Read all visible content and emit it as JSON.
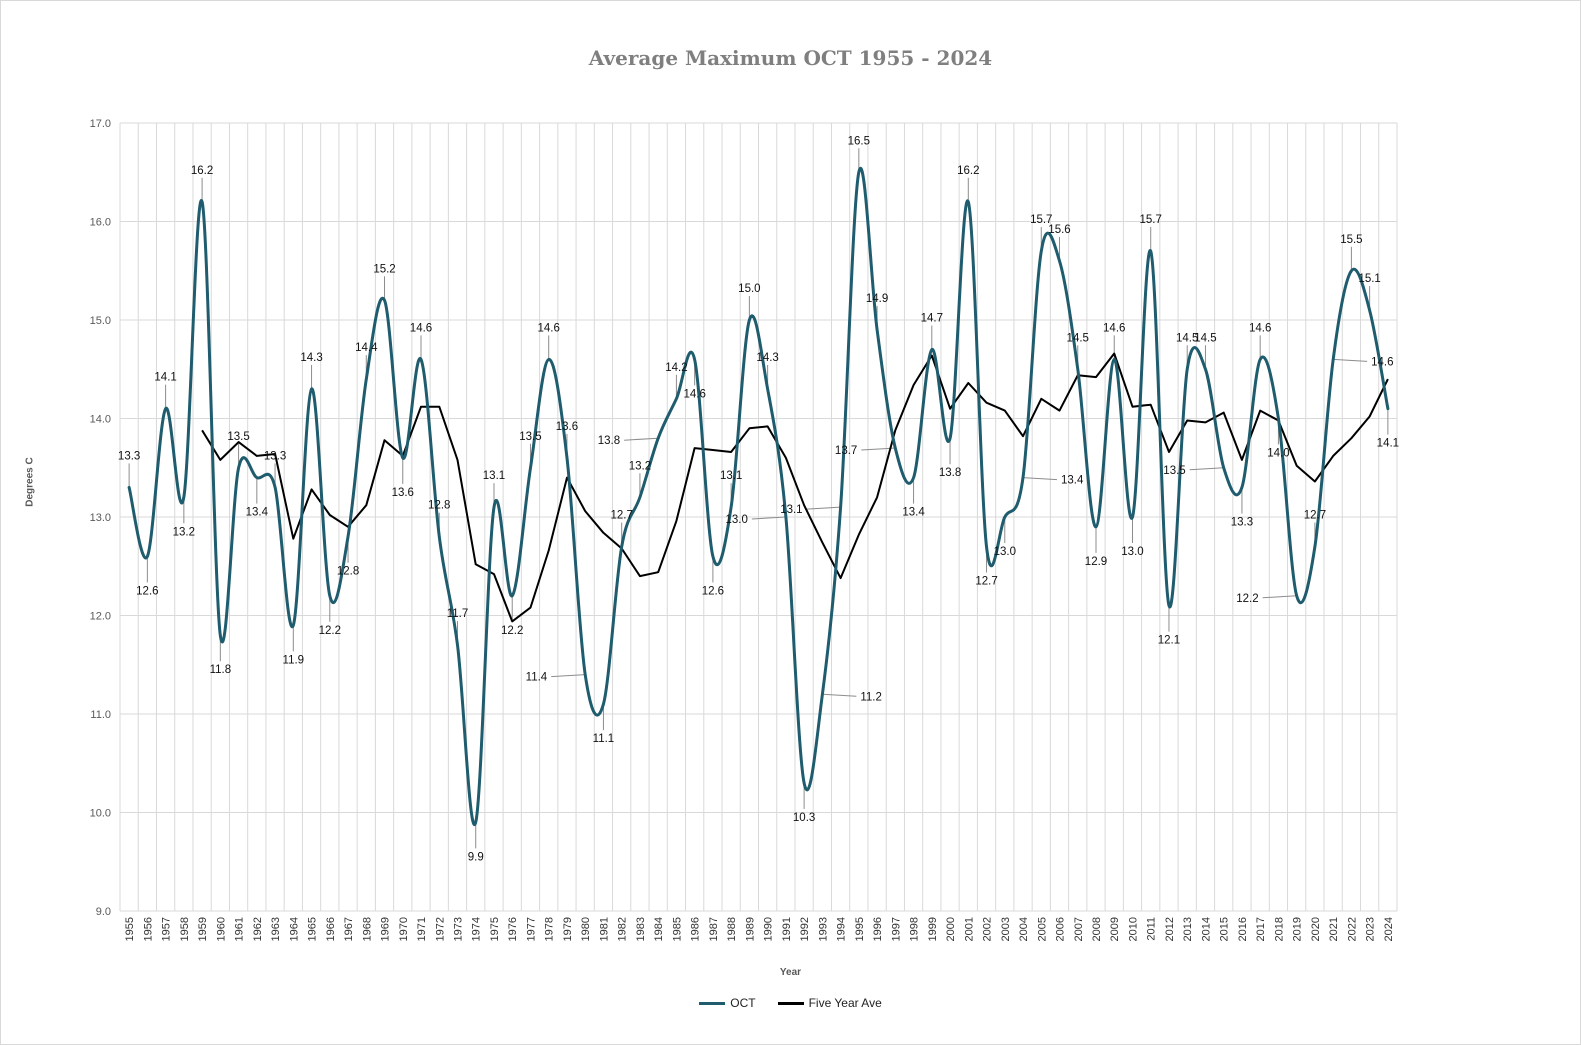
{
  "chart_data": {
    "type": "line",
    "title": "Average Maximum OCT 1955 - 2024",
    "xlabel": "Year",
    "ylabel": "Degrees C",
    "ylim": [
      9.0,
      17.0
    ],
    "y_ticks": [
      "9.0",
      "10.0",
      "11.0",
      "12.0",
      "13.0",
      "14.0",
      "15.0",
      "16.0",
      "17.0"
    ],
    "grid": true,
    "legend": "bottom",
    "x": [
      1955,
      1956,
      1957,
      1958,
      1959,
      1960,
      1961,
      1962,
      1963,
      1964,
      1965,
      1966,
      1967,
      1968,
      1969,
      1970,
      1971,
      1972,
      1973,
      1974,
      1975,
      1976,
      1977,
      1978,
      1979,
      1980,
      1981,
      1982,
      1983,
      1984,
      1985,
      1986,
      1987,
      1988,
      1989,
      1990,
      1991,
      1992,
      1993,
      1994,
      1995,
      1996,
      1997,
      1998,
      1999,
      2000,
      2001,
      2002,
      2003,
      2004,
      2005,
      2006,
      2007,
      2008,
      2009,
      2010,
      2011,
      2012,
      2013,
      2014,
      2015,
      2016,
      2017,
      2018,
      2019,
      2020,
      2021,
      2022,
      2023,
      2024
    ],
    "series": [
      {
        "name": "OCT",
        "color": "#1f5c6e",
        "smooth": true,
        "values": [
          13.3,
          12.6,
          14.1,
          13.2,
          16.2,
          11.8,
          13.5,
          13.4,
          13.3,
          11.9,
          14.3,
          12.2,
          12.8,
          14.4,
          15.2,
          13.6,
          14.6,
          12.8,
          11.7,
          9.9,
          13.1,
          12.2,
          13.5,
          14.6,
          13.6,
          11.4,
          11.1,
          12.7,
          13.2,
          13.8,
          14.2,
          14.6,
          12.6,
          13.1,
          15.0,
          14.3,
          13.0,
          10.3,
          11.2,
          13.1,
          16.5,
          14.9,
          13.7,
          13.4,
          14.7,
          13.8,
          16.2,
          12.7,
          13.0,
          13.4,
          15.7,
          15.6,
          14.5,
          12.9,
          14.6,
          13.0,
          15.7,
          12.1,
          14.5,
          14.5,
          13.5,
          13.3,
          14.6,
          14.0,
          12.2,
          12.7,
          14.6,
          15.5,
          15.1,
          14.1
        ]
      },
      {
        "name": "Five Year Ave",
        "color": "#000000",
        "smooth": false,
        "values": [
          null,
          null,
          null,
          null,
          13.88,
          13.58,
          13.76,
          13.62,
          13.64,
          12.78,
          13.28,
          13.02,
          12.9,
          13.12,
          13.78,
          13.62,
          14.12,
          14.12,
          13.58,
          12.52,
          12.42,
          11.94,
          12.08,
          12.66,
          13.4,
          13.06,
          12.84,
          12.68,
          12.4,
          12.44,
          12.96,
          13.7,
          13.68,
          13.66,
          13.9,
          13.92,
          13.6,
          13.12,
          12.74,
          12.38,
          12.82,
          13.2,
          13.88,
          14.34,
          14.64,
          14.1,
          14.36,
          14.16,
          14.08,
          13.82,
          14.2,
          14.08,
          14.44,
          14.42,
          14.66,
          14.12,
          14.14,
          13.66,
          13.98,
          13.96,
          14.06,
          13.58,
          14.08,
          13.98,
          13.52,
          13.36,
          13.62,
          13.8,
          14.02,
          14.4
        ]
      }
    ],
    "data_labels": [
      "13.3",
      "12.6",
      "14.1",
      "13.2",
      "16.2",
      "11.8",
      "13.5",
      "13.4",
      "13.3",
      "11.9",
      "14.3",
      "12.2",
      "12.8",
      "14.4",
      "15.2",
      "13.6",
      "14.6",
      "12.8",
      "11.7",
      "9.9",
      "13.1",
      "12.2",
      "13.5",
      "14.6",
      "13.6",
      "11.4",
      "11.1",
      "12.7",
      "13.2",
      "13.8",
      "14.2",
      "14.6",
      "12.6",
      "13.1",
      "15.0",
      "14.3",
      "13.0",
      "10.3",
      "11.2",
      "13.1",
      "16.5",
      "14.9",
      "13.7",
      "13.4",
      "14.7",
      "13.8",
      "16.2",
      "12.7",
      "13.0",
      "13.4",
      "15.7",
      "15.6",
      "14.5",
      "12.9",
      "14.6",
      "13.0",
      "15.7",
      "12.1",
      "14.5",
      "14.5",
      "13.5",
      "13.3",
      "14.6",
      "14.0",
      "12.2",
      "12.7",
      "14.6",
      "15.5",
      "15.1",
      "14.1"
    ],
    "label_side": [
      "up",
      "down",
      "up",
      "down",
      "up",
      "down",
      "up",
      "down",
      "up",
      "down",
      "up",
      "down",
      "down",
      "up",
      "up",
      "down",
      "up",
      "up",
      "up",
      "down",
      "up",
      "down",
      "up",
      "up",
      "up",
      "left",
      "down",
      "up",
      "up",
      "left",
      "up",
      "down",
      "down",
      "up",
      "up",
      "up",
      "left",
      "down",
      "right",
      "left",
      "up",
      "up",
      "left",
      "down",
      "up",
      "down",
      "up",
      "down",
      "down",
      "right",
      "up",
      "up",
      "up",
      "down",
      "up",
      "down",
      "up",
      "down",
      "up",
      "up",
      "left",
      "down",
      "up",
      "down",
      "left",
      "up",
      "right",
      "up",
      "up",
      "down"
    ]
  }
}
